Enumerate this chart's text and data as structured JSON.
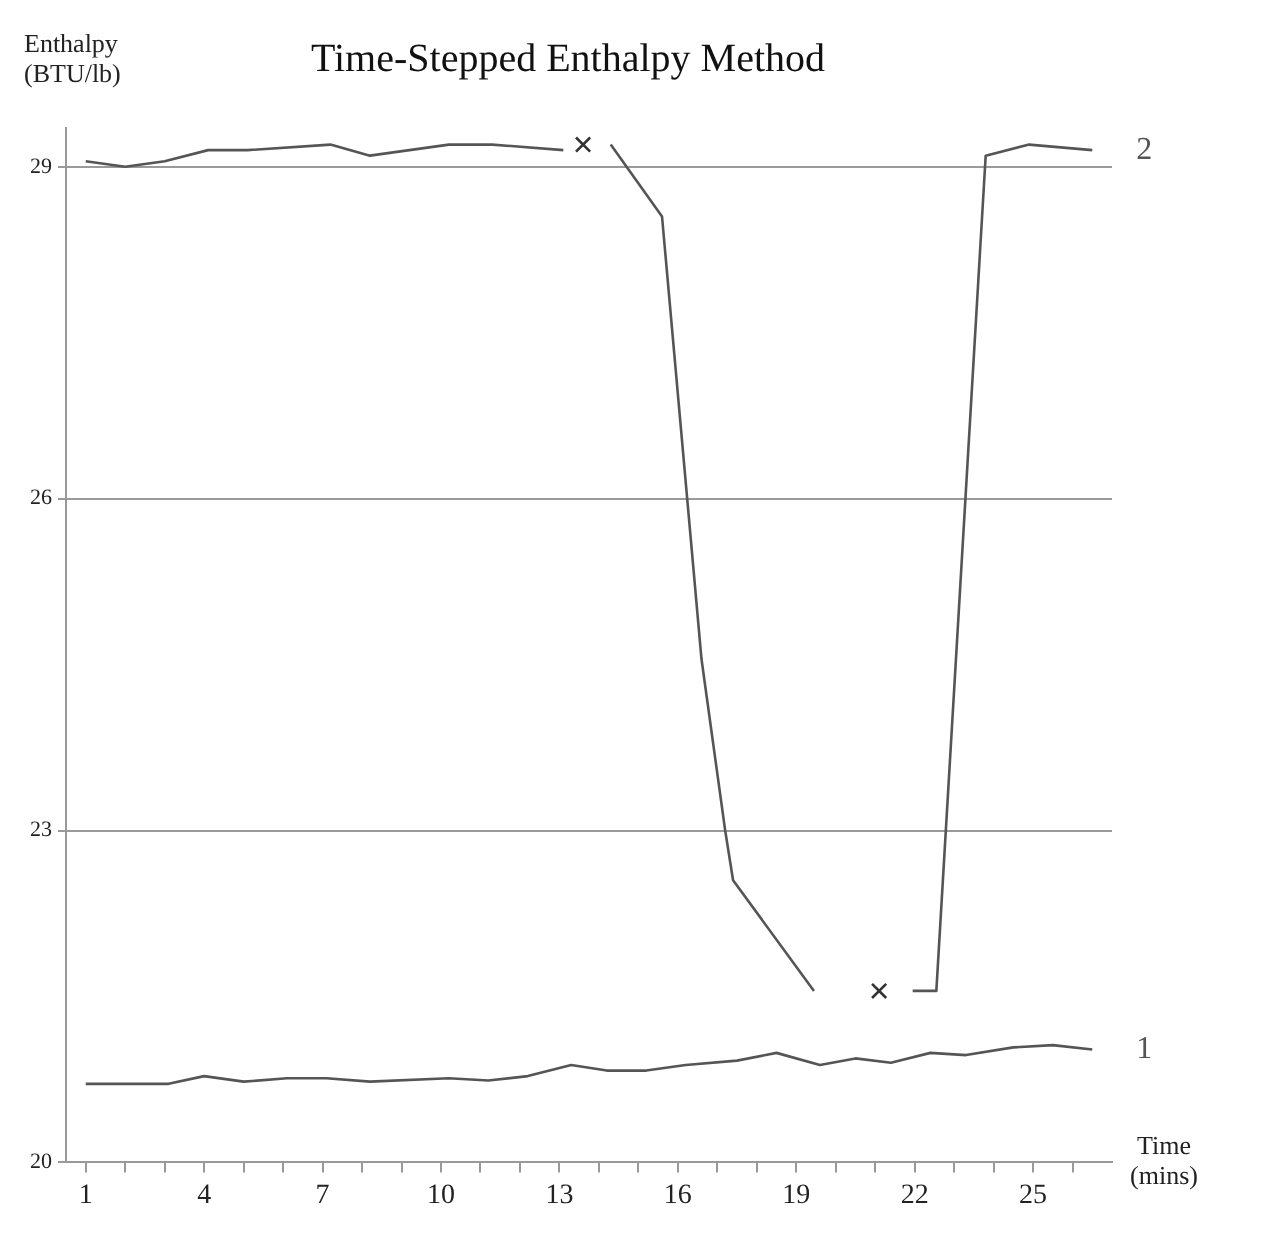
{
  "chart_data": {
    "type": "line",
    "title": "Time-Stepped Enthalpy Method",
    "xlabel": "Time (mins)",
    "ylabel": "Enthalpy (BTU/lb)",
    "xlim": [
      0.5,
      27
    ],
    "xticks": [
      1,
      {
        "value": 2,
        "label": null
      },
      {
        "value": 3,
        "label": null
      },
      4,
      {
        "value": 5,
        "label": null
      },
      {
        "value": 6,
        "label": null
      },
      7,
      {
        "value": 8,
        "label": null
      },
      {
        "value": 9,
        "label": null
      },
      10,
      {
        "value": 11,
        "label": null
      },
      {
        "value": 12,
        "label": null
      },
      13,
      {
        "value": 14,
        "label": null
      },
      {
        "value": 15,
        "label": null
      },
      16,
      {
        "value": 17,
        "label": null
      },
      {
        "value": 18,
        "label": null
      },
      19,
      {
        "value": 20,
        "label": null
      },
      {
        "value": 21,
        "label": null
      },
      22,
      {
        "value": 23,
        "label": null
      },
      {
        "value": 24,
        "label": null
      },
      25,
      {
        "value": 26,
        "label": null
      }
    ],
    "ylim": [
      20,
      29.35
    ],
    "yticks": [
      20,
      23,
      26,
      29
    ],
    "grid": "y",
    "legend": false,
    "marker": "none",
    "line_style": "solid",
    "series": [
      {
        "name": "1",
        "color": "#555555",
        "x": [
          1,
          3.1,
          4,
          5,
          6.1,
          7.1,
          8.2,
          10.2,
          11.2,
          12.2,
          13.3,
          14.2,
          15.2,
          16.2,
          17.5,
          18.5,
          19.6,
          20.5,
          21.4,
          22.4,
          23.3,
          24.5,
          25.5,
          26.5
        ],
        "values": [
          20.71,
          20.71,
          20.78,
          20.73,
          20.76,
          20.76,
          20.73,
          20.76,
          20.74,
          20.78,
          20.88,
          20.83,
          20.83,
          20.88,
          20.92,
          20.99,
          20.88,
          20.94,
          20.9,
          20.99,
          20.97,
          21.04,
          21.06,
          21.02
        ]
      },
      {
        "name": "2",
        "color": "#555555",
        "x": [
          1,
          2,
          3,
          4.1,
          5.1,
          7.2,
          8.2,
          10.2,
          11.3,
          13.1,
          13.6,
          14.3,
          15.6,
          16.6,
          17.2,
          17.4,
          19.45,
          21.1,
          21.95,
          22.55,
          23.8,
          24.9,
          26.5
        ],
        "values": [
          29.05,
          29,
          29.05,
          29.15,
          29.15,
          29.2,
          29.1,
          29.2,
          29.2,
          29.15,
          null,
          29.2,
          28.55,
          24.55,
          23,
          22.55,
          21.55,
          null,
          21.55,
          21.55,
          29.1,
          29.2,
          29.15
        ]
      },
      {
        "type": "scatter",
        "marker": "cross",
        "color": "#333333",
        "x": [
          13.6,
          21.1
        ],
        "values": [
          29.2,
          21.55
        ]
      }
    ]
  }
}
